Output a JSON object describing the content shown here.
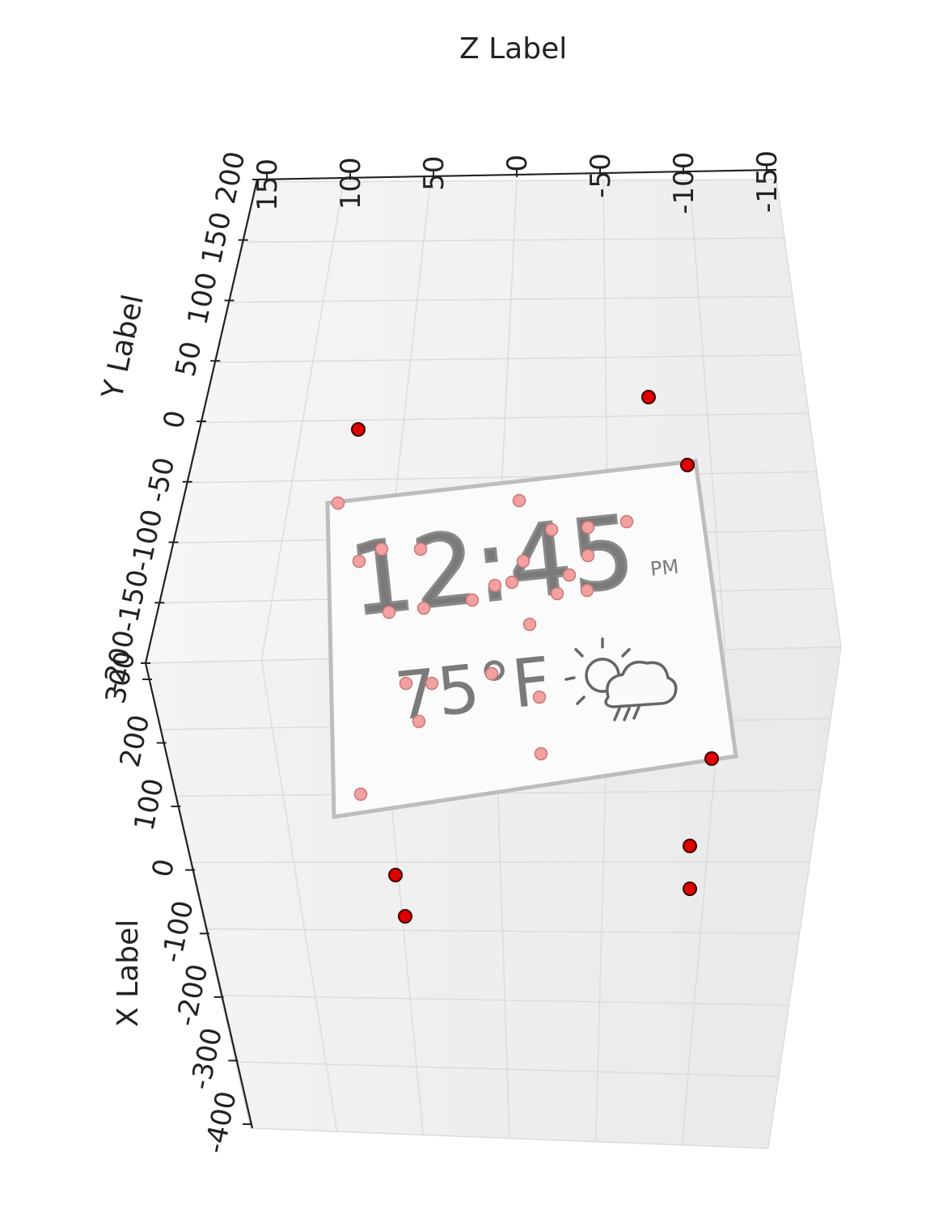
{
  "chart_data": {
    "type": "scatter",
    "projection": "3d",
    "xlabel": "X Label",
    "ylabel": "Y Label",
    "zlabel": "Z Label",
    "x_ticks": [
      "-400",
      "-300",
      "-200",
      "-100",
      "0",
      "100",
      "200",
      "300"
    ],
    "y_ticks": [
      "-200",
      "-150",
      "-100",
      "-50",
      "0",
      "50",
      "100",
      "150",
      "200"
    ],
    "z_ticks": [
      "150",
      "100",
      "50",
      "0",
      "-50",
      "-100",
      "-150"
    ],
    "xlim": [
      -400,
      300
    ],
    "ylim": [
      -200,
      200
    ],
    "zlim": [
      -150,
      150
    ],
    "grid": true,
    "marker_color": "#e00000",
    "embedded_screen": {
      "time": "12:45",
      "ampm": "PM",
      "temperature": "75°F",
      "icon": "partly-sunny-rain-icon"
    },
    "points_outside_panel": 7,
    "points_on_panel": 30
  }
}
